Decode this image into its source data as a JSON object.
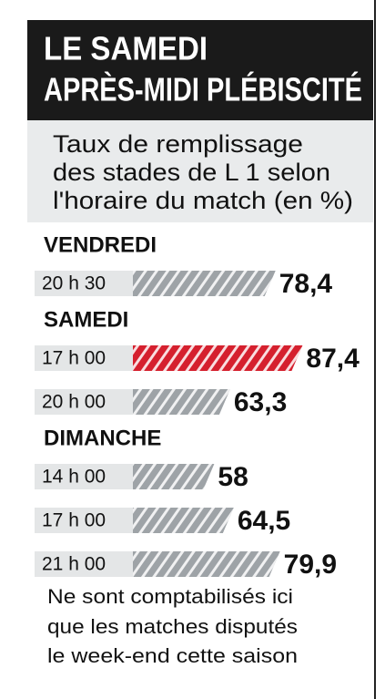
{
  "chart_data": {
    "type": "bar",
    "title": [
      "LE SAMEDI",
      "APRÈS-MIDI PLÉBISCITÉ"
    ],
    "subtitle": [
      "Taux de remplissage",
      "des stades de L 1 selon",
      "l'horaire du match (en %)"
    ],
    "groups": [
      {
        "name": "VENDREDI",
        "categories": [
          "20 h 30"
        ],
        "values": [
          78.4
        ],
        "value_labels": [
          "78,4"
        ],
        "colors": [
          "#9ea3a7"
        ]
      },
      {
        "name": "SAMEDI",
        "categories": [
          "17 h 00",
          "20 h 00"
        ],
        "values": [
          87.4,
          63.3
        ],
        "value_labels": [
          "87,4",
          "63,3"
        ],
        "colors": [
          "#d5202e",
          "#9ea3a7"
        ]
      },
      {
        "name": "DIMANCHE",
        "categories": [
          "14 h 00",
          "17 h 00",
          "21 h 00"
        ],
        "values": [
          58,
          64.5,
          79.9
        ],
        "value_labels": [
          "58",
          "64,5",
          "79,9"
        ],
        "colors": [
          "#9ea3a7",
          "#9ea3a7",
          "#9ea3a7"
        ]
      }
    ],
    "note": [
      "Ne sont comptabilisés ici",
      "que les matches disputés",
      "le week-end cette saison"
    ]
  }
}
